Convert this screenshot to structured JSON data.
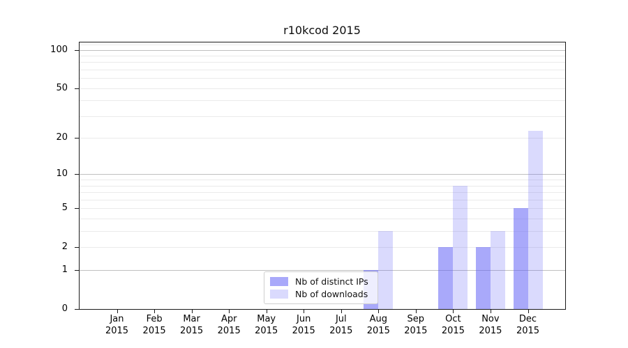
{
  "chart_data": {
    "type": "bar",
    "title": "r10kcod 2015",
    "categories": [
      "Jan 2015",
      "Feb 2015",
      "Mar 2015",
      "Apr 2015",
      "May 2015",
      "Jun 2015",
      "Jul 2015",
      "Aug 2015",
      "Sep 2015",
      "Oct 2015",
      "Nov 2015",
      "Dec 2015"
    ],
    "series": [
      {
        "name": "Nb of distinct IPs",
        "color": "rgba(99,99,245,0.55)",
        "values": [
          0,
          0,
          0,
          0,
          0,
          0,
          0,
          1,
          0,
          2,
          2,
          5
        ]
      },
      {
        "name": "Nb of downloads",
        "color": "rgba(99,99,245,0.24)",
        "values": [
          0,
          0,
          0,
          0,
          0,
          0,
          0,
          3,
          0,
          8,
          3,
          23
        ]
      }
    ],
    "yscale": "log1p",
    "ylim": [
      0,
      114
    ],
    "ytick_labels": [
      "0",
      "1",
      "2",
      "5",
      "10",
      "20",
      "50",
      "100"
    ],
    "yticks_labeled": [
      0,
      1,
      2,
      5,
      10,
      20,
      50,
      100
    ],
    "gridlines_major": [
      1,
      10,
      100
    ],
    "gridlines_minor": [
      2,
      3,
      4,
      5,
      6,
      7,
      8,
      9,
      20,
      30,
      40,
      50,
      60,
      70,
      80,
      90,
      110
    ],
    "grid": true,
    "legend_position": "lower center",
    "colors": {
      "major_grid": "#bfbfbf",
      "minor_grid": "#eaeaea",
      "axis": "#1a1a1a",
      "bar_dark_on_white": "#aaaaf8",
      "bar_light_on_white": "#dadaf8"
    }
  }
}
